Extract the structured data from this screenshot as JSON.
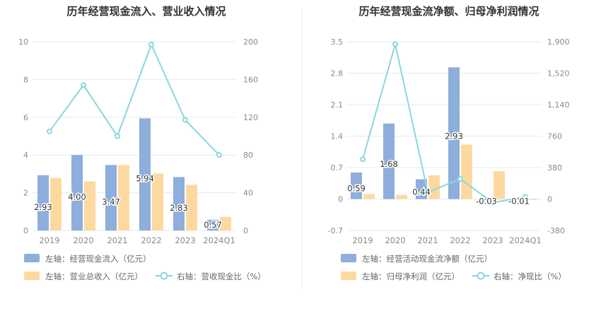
{
  "colors": {
    "bar_left": "#8eaedb",
    "bar_right": "#fdd9a0",
    "line": "#8ad7dc",
    "axis_text": "#8a8a8a",
    "title": "#333333",
    "grid": "#e6e9f0",
    "label": "#333333",
    "divider": "#eeeeee"
  },
  "chart_data": [
    {
      "type": "bar",
      "title": "历年经营现金流入、营业收入情况",
      "categories": [
        "2019",
        "2020",
        "2021",
        "2022",
        "2023",
        "2024Q1"
      ],
      "left_axis": {
        "min": 0,
        "max": 10,
        "ticks": [
          "0",
          "2",
          "4",
          "6",
          "8",
          "10"
        ]
      },
      "right_axis": {
        "min": 0,
        "max": 200,
        "ticks": [
          "0",
          "40",
          "80",
          "120",
          "160",
          "200"
        ]
      },
      "series": [
        {
          "name": "左轴：经营现金流入（亿元）",
          "kind": "bar",
          "axis": "left",
          "values": [
            2.93,
            4.0,
            3.47,
            5.94,
            2.83,
            0.57
          ],
          "labels": [
            "2.93",
            "4.00",
            "3.47",
            "5.94",
            "2.83",
            "0.57"
          ]
        },
        {
          "name": "左轴：营业总收入（亿元）",
          "kind": "bar",
          "axis": "left",
          "values": [
            2.78,
            2.6,
            3.47,
            3.02,
            2.42,
            0.72
          ]
        },
        {
          "name": "右轴：营收现金比（%）",
          "kind": "line",
          "axis": "right",
          "values": [
            105,
            154,
            100,
            197,
            117,
            80
          ]
        }
      ]
    },
    {
      "type": "bar",
      "title": "历年经营现金流净额、归母净利润情况",
      "categories": [
        "2019",
        "2020",
        "2021",
        "2022",
        "2023",
        "2024Q1"
      ],
      "left_axis": {
        "min": -0.7,
        "max": 3.5,
        "ticks": [
          "-0.7",
          "0",
          "0.7",
          "1.4",
          "2.1",
          "2.8",
          "3.5"
        ]
      },
      "right_axis": {
        "min": -380,
        "max": 1900,
        "ticks": [
          "-380",
          "0",
          "380",
          "760",
          "1,140",
          "1,520",
          "1,900"
        ]
      },
      "series": [
        {
          "name": "左轴：经营活动现金流净额（亿元）",
          "kind": "bar",
          "axis": "left",
          "values": [
            0.59,
            1.68,
            0.44,
            2.93,
            -0.03,
            -0.01
          ],
          "labels": [
            "0.59",
            "1.68",
            "0.44",
            "2.93",
            "-0.03",
            "-0.01"
          ]
        },
        {
          "name": "左轴：归母净利润（亿元）",
          "kind": "bar",
          "axis": "left",
          "values": [
            0.11,
            0.09,
            0.53,
            1.21,
            0.62,
            -0.02
          ]
        },
        {
          "name": "右轴：净现比（%）",
          "kind": "line",
          "axis": "right",
          "values": [
            480,
            1870,
            83,
            242,
            -43,
            25
          ]
        }
      ]
    }
  ]
}
